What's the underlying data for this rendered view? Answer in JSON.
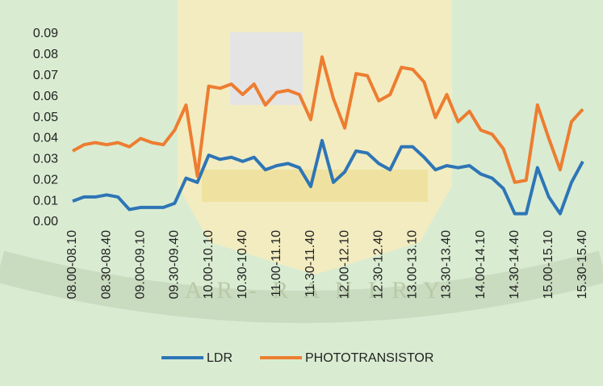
{
  "chart_data": {
    "type": "line",
    "watermark": "A R - R A N I R Y",
    "categories": [
      "08.00-08.10",
      null,
      null,
      "08.30-08.40",
      null,
      null,
      "09.00-09.10",
      null,
      null,
      "09.30-09.40",
      null,
      null,
      "10.00-10.10",
      null,
      null,
      "10.30-10.40",
      null,
      null,
      "11.00-11.10",
      null,
      null,
      "11.30-11.40",
      null,
      null,
      "12.00-12.10",
      null,
      null,
      "12.30-12.40",
      null,
      null,
      "13.00-13.10",
      null,
      null,
      "13.30-13.40",
      null,
      null,
      "14.00-14.10",
      null,
      null,
      "14.30-14.40",
      null,
      null,
      "15.00-15.10",
      null,
      null,
      "15.30-15.40"
    ],
    "series": [
      {
        "name": "LDR",
        "color": "#2e75b6",
        "values": [
          0.01,
          0.012,
          0.012,
          0.013,
          0.012,
          0.006,
          0.007,
          0.007,
          0.007,
          0.009,
          0.021,
          0.019,
          0.032,
          0.03,
          0.031,
          0.029,
          0.031,
          0.025,
          0.027,
          0.028,
          0.026,
          0.017,
          0.039,
          0.019,
          0.024,
          0.034,
          0.033,
          0.028,
          0.025,
          0.036,
          0.036,
          0.031,
          0.025,
          0.027,
          0.026,
          0.027,
          0.023,
          0.021,
          0.016,
          0.004,
          0.004,
          0.026,
          0.012,
          0.004,
          0.019,
          0.029
        ]
      },
      {
        "name": "PHOTOTRANSISTOR",
        "color": "#ed7d31",
        "values": [
          0.034,
          0.037,
          0.038,
          0.037,
          0.038,
          0.036,
          0.04,
          0.038,
          0.037,
          0.044,
          0.056,
          0.022,
          0.065,
          0.064,
          0.066,
          0.061,
          0.066,
          0.056,
          0.062,
          0.063,
          0.061,
          0.049,
          0.079,
          0.059,
          0.045,
          0.071,
          0.07,
          0.058,
          0.061,
          0.074,
          0.073,
          0.067,
          0.05,
          0.061,
          0.048,
          0.053,
          0.044,
          0.042,
          0.035,
          0.019,
          0.02,
          0.056,
          0.04,
          0.025,
          0.048,
          0.054
        ]
      }
    ],
    "ylim": [
      0,
      0.09
    ],
    "yticks": [
      {
        "value": 0,
        "label": "0.00"
      },
      0.01,
      0.02,
      0.03,
      0.04,
      0.05,
      0.06,
      0.07,
      0.08,
      0.09
    ],
    "grid": false
  }
}
